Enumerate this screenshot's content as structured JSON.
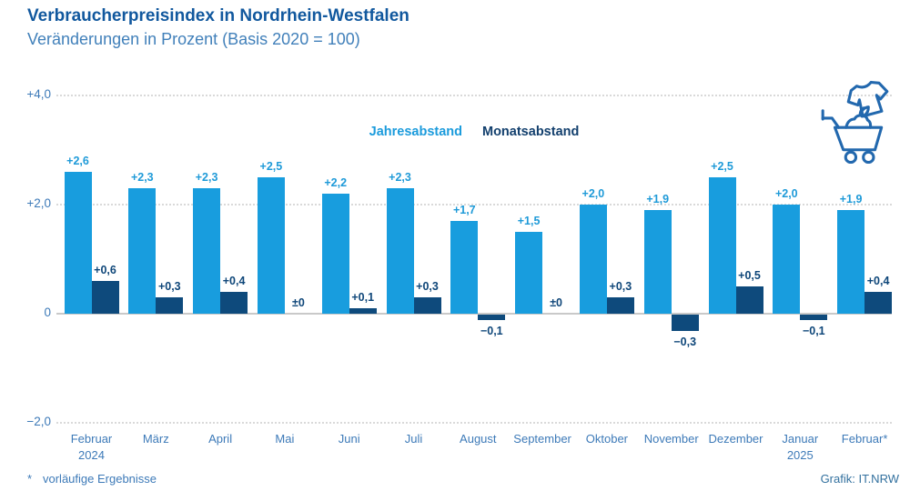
{
  "header": {
    "title": "Verbraucherpreisindex in Nordrhein-Westfalen",
    "subtitle": "Veränderungen in Prozent (Basis 2020 = 100)"
  },
  "legend": {
    "series1_label": "Jahresabstand",
    "series2_label": "Monatsabstand"
  },
  "colors": {
    "series1": "#189dde",
    "series2": "#0e4a7c",
    "title_text": "#11589e",
    "axis_text": "#3d7ab8",
    "gridline": "#d9d9d9",
    "icon_stroke": "#2268ae"
  },
  "icons": {
    "top_right": "clothing-and-shopping-cart-icon"
  },
  "chart_data": {
    "type": "bar",
    "title": "Verbraucherpreisindex in Nordrhein-Westfalen",
    "subtitle": "Veränderungen in Prozent (Basis 2020 = 100)",
    "ylim": [
      -2.0,
      4.0
    ],
    "grid": "horizontal dotted, solid zero line",
    "legend_position": "top center, text only",
    "yticks": [
      {
        "value": 4,
        "label": "+4,0"
      },
      {
        "value": 2,
        "label": "+2,0"
      },
      {
        "value": 0,
        "label": "0"
      },
      {
        "value": -2,
        "label": "−2,0"
      }
    ],
    "categories": [
      {
        "line1": "Februar",
        "line2": "2024"
      },
      {
        "line1": "März",
        "line2": ""
      },
      {
        "line1": "April",
        "line2": ""
      },
      {
        "line1": "Mai",
        "line2": ""
      },
      {
        "line1": "Juni",
        "line2": ""
      },
      {
        "line1": "Juli",
        "line2": ""
      },
      {
        "line1": "August",
        "line2": ""
      },
      {
        "line1": "September",
        "line2": ""
      },
      {
        "line1": "Oktober",
        "line2": ""
      },
      {
        "line1": "November",
        "line2": ""
      },
      {
        "line1": "Dezember",
        "line2": ""
      },
      {
        "line1": "Januar",
        "line2": "2025"
      },
      {
        "line1": "Februar*",
        "line2": ""
      }
    ],
    "series": [
      {
        "name": "Jahresabstand",
        "color": "#189dde",
        "values": [
          2.6,
          2.3,
          2.3,
          2.5,
          2.2,
          2.3,
          1.7,
          1.5,
          2.0,
          1.9,
          2.5,
          2.0,
          1.9
        ],
        "labels": [
          "+2,6",
          "+2,3",
          "+2,3",
          "+2,5",
          "+2,2",
          "+2,3",
          "+1,7",
          "+1,5",
          "+2,0",
          "+1,9",
          "+2,5",
          "+2,0",
          "+1,9"
        ]
      },
      {
        "name": "Monatsabstand",
        "color": "#0e4a7c",
        "values": [
          0.6,
          0.3,
          0.4,
          0.0,
          0.1,
          0.3,
          -0.1,
          0.0,
          0.3,
          -0.3,
          0.5,
          -0.1,
          0.4
        ],
        "labels": [
          "+0,6",
          "+0,3",
          "+0,4",
          "±0",
          "+0,1",
          "+0,3",
          "−0,1",
          "±0",
          "+0,3",
          "−0,3",
          "+0,5",
          "−0,1",
          "+0,4"
        ]
      }
    ]
  },
  "footer": {
    "footnote_marker": "*",
    "footnote_text": "vorläufige Ergebnisse",
    "credit": "Grafik: IT.NRW"
  }
}
